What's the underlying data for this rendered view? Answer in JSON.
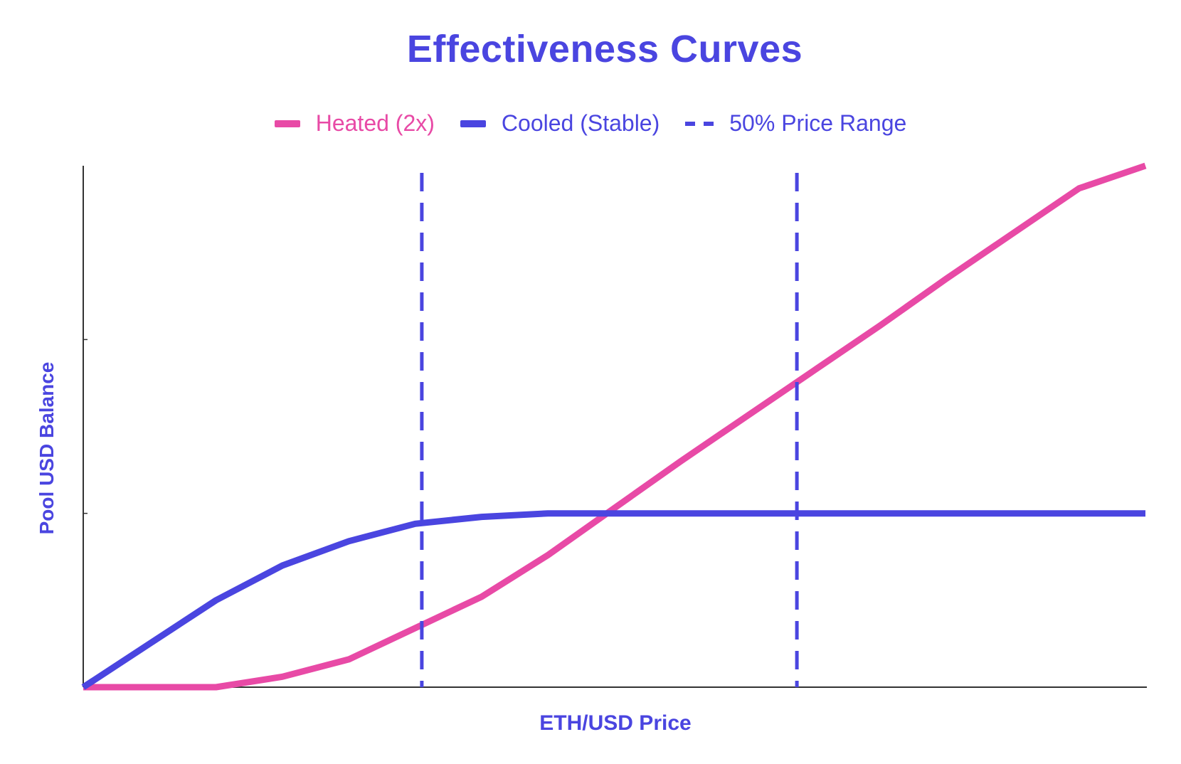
{
  "chart_data": {
    "type": "line",
    "title": "Effectiveness Curves",
    "xlabel": "ETH/USD Price",
    "ylabel": "Pool USD Balance",
    "xlim": [
      0,
      160
    ],
    "ylim": [
      0,
      3
    ],
    "y_ticks": [
      1,
      2
    ],
    "grid": false,
    "legend_position": "top-center",
    "colors": {
      "title": "#4a45e0",
      "heated": "#e84aa6",
      "cooled": "#4a45e0",
      "range": "#4a45e0",
      "axis": "#333333"
    },
    "legend": [
      {
        "key": "heated",
        "label": "Heated (2x)",
        "style": "solid"
      },
      {
        "key": "cooled",
        "label": "Cooled (Stable)",
        "style": "solid"
      },
      {
        "key": "range",
        "label": "50% Price Range",
        "style": "dashed"
      }
    ],
    "series": [
      {
        "key": "heated",
        "name": "Heated (2x)",
        "x": [
          0,
          10,
          20,
          30,
          40,
          50,
          60,
          70,
          80,
          90,
          100,
          110,
          120,
          130,
          140,
          150,
          160
        ],
        "y": [
          0,
          0,
          0,
          0.06,
          0.16,
          0.34,
          0.52,
          0.76,
          1.03,
          1.3,
          1.56,
          1.82,
          2.08,
          2.35,
          2.61,
          2.87,
          3.0
        ]
      },
      {
        "key": "cooled",
        "name": "Cooled (Stable)",
        "x": [
          0,
          10,
          20,
          30,
          40,
          50,
          60,
          70,
          80,
          90,
          100,
          110,
          120,
          130,
          140,
          150,
          160
        ],
        "y": [
          0,
          0.25,
          0.5,
          0.7,
          0.84,
          0.94,
          0.98,
          1.0,
          1.0,
          1.0,
          1.0,
          1.0,
          1.0,
          1.0,
          1.0,
          1.0,
          1.0
        ]
      }
    ],
    "vertical_lines": [
      {
        "key": "range",
        "name": "50% Price Range",
        "x": 51
      },
      {
        "key": "range",
        "name": "50% Price Range",
        "x": 107.5
      }
    ]
  }
}
